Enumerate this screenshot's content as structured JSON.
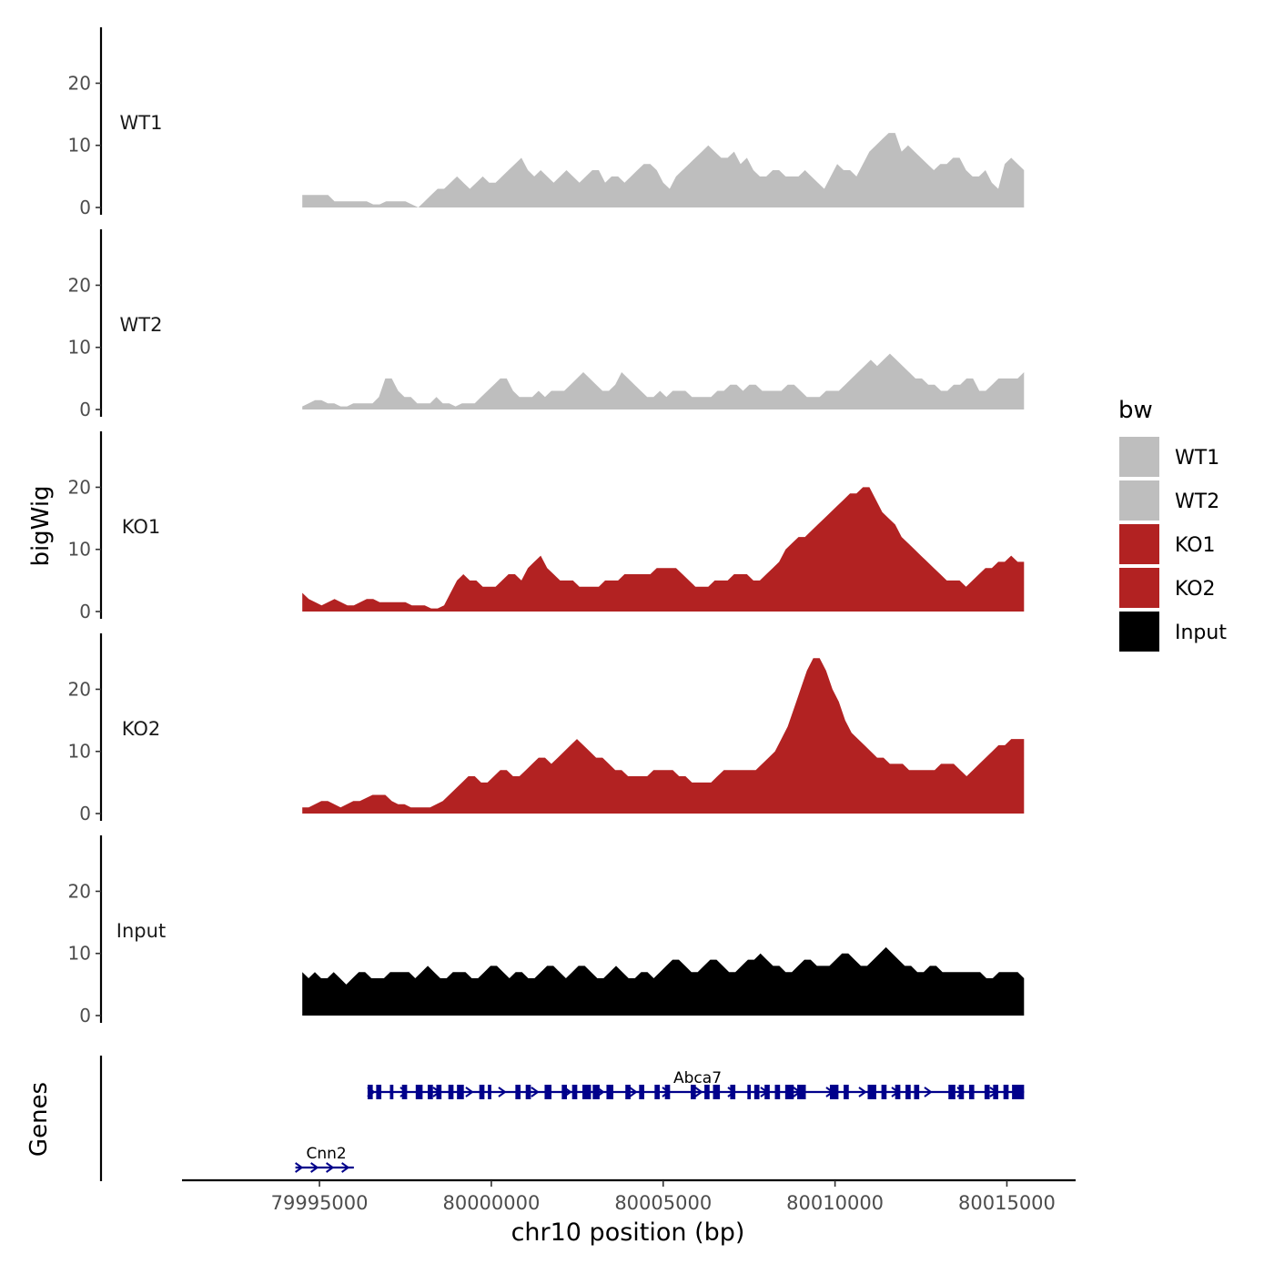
{
  "chart_data": {
    "type": "area",
    "title": "",
    "xlabel": "chr10 position (bp)",
    "ylabel": "bigWig",
    "xlim": [
      79991000,
      80017000
    ],
    "x_ticks": [
      79995000,
      80000000,
      80005000,
      80010000,
      80015000
    ],
    "x_tick_labels": [
      "79995000",
      "80000000",
      "80005000",
      "80010000",
      "80015000"
    ],
    "ylim": [
      0,
      29
    ],
    "y_ticks": [
      0,
      10,
      20
    ],
    "y_tick_labels": [
      "0",
      "10",
      "20"
    ],
    "signal_range": [
      79994500,
      80015500
    ],
    "legend": {
      "title": "bw",
      "position": "right",
      "entries": [
        {
          "label": "WT1",
          "color": "#bebebe"
        },
        {
          "label": "WT2",
          "color": "#bebebe"
        },
        {
          "label": "KO1",
          "color": "#b22222"
        },
        {
          "label": "KO2",
          "color": "#b22222"
        },
        {
          "label": "Input",
          "color": "#000000"
        }
      ]
    },
    "series": [
      {
        "name": "WT1",
        "color": "#bebebe",
        "values": [
          2,
          2,
          2,
          2,
          2,
          1,
          1,
          1,
          1,
          1,
          1,
          0.5,
          0.5,
          1,
          1,
          1,
          1,
          0.5,
          0,
          1,
          2,
          3,
          3,
          4,
          5,
          4,
          3,
          4,
          5,
          4,
          4,
          5,
          6,
          7,
          8,
          6,
          5,
          6,
          5,
          4,
          5,
          6,
          5,
          4,
          5,
          6,
          6,
          4,
          5,
          5,
          4,
          5,
          6,
          7,
          7,
          6,
          4,
          3,
          5,
          6,
          7,
          8,
          9,
          10,
          9,
          8,
          8,
          9,
          7,
          8,
          6,
          5,
          5,
          6,
          6,
          5,
          5,
          5,
          6,
          5,
          4,
          3,
          5,
          7,
          6,
          6,
          5,
          7,
          9,
          10,
          11,
          12,
          12,
          9,
          10,
          9,
          8,
          7,
          6,
          7,
          7,
          8,
          8,
          6,
          5,
          5,
          6,
          4,
          3,
          7,
          8,
          7,
          6
        ]
      },
      {
        "name": "WT2",
        "color": "#bebebe",
        "values": [
          0.5,
          1,
          1.5,
          1.5,
          1,
          1,
          0.5,
          0.5,
          1,
          1,
          1,
          1,
          2,
          5,
          5,
          3,
          2,
          2,
          1,
          1,
          1,
          2,
          1,
          1,
          0.5,
          1,
          1,
          1,
          2,
          3,
          4,
          5,
          5,
          3,
          2,
          2,
          2,
          3,
          2,
          3,
          3,
          3,
          4,
          5,
          6,
          5,
          4,
          3,
          3,
          4,
          6,
          5,
          4,
          3,
          2,
          2,
          3,
          2,
          3,
          3,
          3,
          2,
          2,
          2,
          2,
          3,
          3,
          4,
          4,
          3,
          4,
          4,
          3,
          3,
          3,
          3,
          4,
          4,
          3,
          2,
          2,
          2,
          3,
          3,
          3,
          4,
          5,
          6,
          7,
          8,
          7,
          8,
          9,
          8,
          7,
          6,
          5,
          5,
          4,
          4,
          3,
          3,
          4,
          4,
          5,
          5,
          3,
          3,
          4,
          5,
          5,
          5,
          5,
          6
        ]
      },
      {
        "name": "KO1",
        "color": "#b22222",
        "values": [
          3,
          2,
          1.5,
          1,
          1.5,
          2,
          1.5,
          1,
          1,
          1.5,
          2,
          2,
          1.5,
          1.5,
          1.5,
          1.5,
          1.5,
          1,
          1,
          1,
          0.5,
          0.5,
          1,
          3,
          5,
          6,
          5,
          5,
          4,
          4,
          4,
          5,
          6,
          6,
          5,
          7,
          8,
          9,
          7,
          6,
          5,
          5,
          5,
          4,
          4,
          4,
          4,
          5,
          5,
          5,
          6,
          6,
          6,
          6,
          6,
          7,
          7,
          7,
          7,
          6,
          5,
          4,
          4,
          4,
          5,
          5,
          5,
          6,
          6,
          6,
          5,
          5,
          6,
          7,
          8,
          10,
          11,
          12,
          12,
          13,
          14,
          15,
          16,
          17,
          18,
          19,
          19,
          20,
          20,
          18,
          16,
          15,
          14,
          12,
          11,
          10,
          9,
          8,
          7,
          6,
          5,
          5,
          5,
          4,
          5,
          6,
          7,
          7,
          8,
          8,
          9,
          8,
          8
        ]
      },
      {
        "name": "KO2",
        "color": "#b22222",
        "values": [
          1,
          1,
          1.5,
          2,
          2,
          1.5,
          1,
          1.5,
          2,
          2,
          2.5,
          3,
          3,
          3,
          2,
          1.5,
          1.5,
          1,
          1,
          1,
          1,
          1.5,
          2,
          3,
          4,
          5,
          6,
          6,
          5,
          5,
          6,
          7,
          7,
          6,
          6,
          7,
          8,
          9,
          9,
          8,
          9,
          10,
          11,
          12,
          11,
          10,
          9,
          9,
          8,
          7,
          7,
          6,
          6,
          6,
          6,
          7,
          7,
          7,
          7,
          6,
          6,
          5,
          5,
          5,
          5,
          6,
          7,
          7,
          7,
          7,
          7,
          7,
          8,
          9,
          10,
          12,
          14,
          17,
          20,
          23,
          25,
          25,
          23,
          20,
          18,
          15,
          13,
          12,
          11,
          10,
          9,
          9,
          8,
          8,
          8,
          7,
          7,
          7,
          7,
          7,
          8,
          8,
          8,
          7,
          6,
          7,
          8,
          9,
          10,
          11,
          11,
          12,
          12,
          12
        ]
      },
      {
        "name": "Input",
        "color": "#000000",
        "values": [
          7,
          6,
          7,
          6,
          6,
          7,
          6,
          5,
          6,
          7,
          7,
          6,
          6,
          6,
          7,
          7,
          7,
          7,
          6,
          7,
          8,
          7,
          6,
          6,
          7,
          7,
          7,
          6,
          6,
          7,
          8,
          8,
          7,
          6,
          7,
          7,
          6,
          6,
          7,
          8,
          8,
          7,
          6,
          7,
          8,
          8,
          7,
          6,
          6,
          7,
          8,
          7,
          6,
          6,
          7,
          7,
          6,
          7,
          8,
          9,
          9,
          8,
          7,
          7,
          8,
          9,
          9,
          8,
          7,
          7,
          8,
          9,
          9,
          10,
          9,
          8,
          8,
          7,
          7,
          8,
          9,
          9,
          8,
          8,
          8,
          9,
          10,
          10,
          9,
          8,
          8,
          9,
          10,
          11,
          10,
          9,
          8,
          8,
          7,
          7,
          8,
          8,
          7,
          7,
          7,
          7,
          7,
          7,
          7,
          6,
          6,
          7,
          7,
          7,
          7,
          6
        ]
      }
    ],
    "genes": {
      "label": "Genes",
      "color": "#00008b",
      "items": [
        {
          "name": "Cnn2",
          "start": 79994300,
          "end": 79996000,
          "strand": "+",
          "exons": []
        },
        {
          "name": "Abca7",
          "start": 79996400,
          "end": 80015500,
          "strand": "+",
          "exons": [
            [
              79996400,
              79996550
            ],
            [
              79996650,
              79996800
            ],
            [
              79997050,
              79997150
            ],
            [
              79997400,
              79997550
            ],
            [
              79997800,
              79998000
            ],
            [
              79998150,
              79998300
            ],
            [
              79998400,
              79998550
            ],
            [
              79998750,
              79998900
            ],
            [
              79999000,
              79999200
            ],
            [
              79999650,
              79999800
            ],
            [
              79999900,
              80000000
            ],
            [
              80000700,
              80000850
            ],
            [
              80001000,
              80001150
            ],
            [
              80001550,
              80001750
            ],
            [
              80002050,
              80002200
            ],
            [
              80002350,
              80002500
            ],
            [
              80002650,
              80002900
            ],
            [
              80002950,
              80003150
            ],
            [
              80003350,
              80003550
            ],
            [
              80003900,
              80004050
            ],
            [
              80004300,
              80004450
            ],
            [
              80004750,
              80004900
            ],
            [
              80005050,
              80005200
            ],
            [
              80005800,
              80005950
            ],
            [
              80006200,
              80006350
            ],
            [
              80006450,
              80006650
            ],
            [
              80006950,
              80007100
            ],
            [
              80007450,
              80007550
            ],
            [
              80007650,
              80007800
            ],
            [
              80007950,
              80008100
            ],
            [
              80008250,
              80008400
            ],
            [
              80008550,
              80008800
            ],
            [
              80008900,
              80009150
            ],
            [
              80009850,
              80010100
            ],
            [
              80010250,
              80010400
            ],
            [
              80010950,
              80011200
            ],
            [
              80011350,
              80011500
            ],
            [
              80011750,
              80011900
            ],
            [
              80012050,
              80012200
            ],
            [
              80012300,
              80012450
            ],
            [
              80013300,
              80013500
            ],
            [
              80013600,
              80013750
            ],
            [
              80013900,
              80014050
            ],
            [
              80014350,
              80014500
            ],
            [
              80014600,
              80014750
            ],
            [
              80014900,
              80015050
            ],
            [
              80015150,
              80015500
            ]
          ]
        }
      ]
    }
  }
}
